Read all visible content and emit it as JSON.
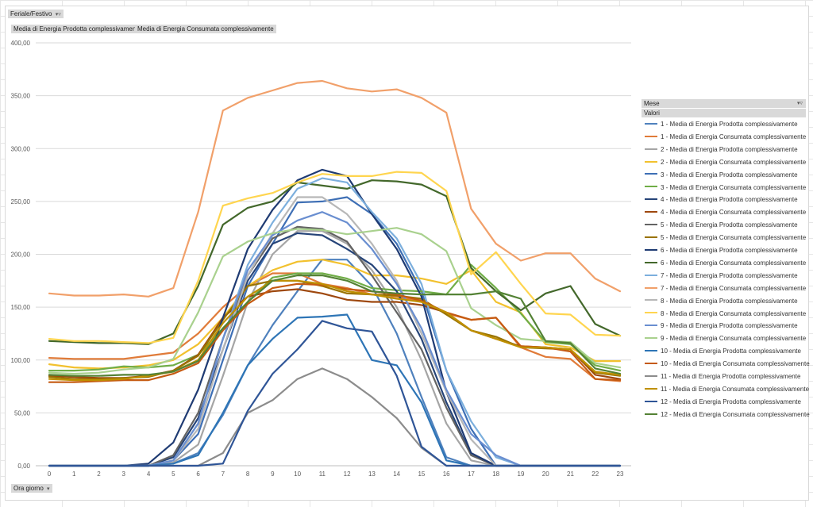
{
  "filter_field": {
    "label": "Feriale/Festivo",
    "icon": "filter-dropdown-icon"
  },
  "value_fields": [
    "Media di Energia Prodotta complessivamente",
    "Media di Energia Consumata complessivamente"
  ],
  "axis_field": {
    "label": "Ora giorno",
    "icon": "dropdown-arrow-icon"
  },
  "legend": {
    "header": "Mese",
    "subheader": "Valori",
    "icon": "filter-dropdown-icon"
  },
  "chart_data": {
    "type": "line",
    "x": [
      0,
      1,
      2,
      3,
      4,
      5,
      6,
      7,
      8,
      9,
      10,
      11,
      12,
      13,
      14,
      15,
      16,
      17,
      18,
      19,
      20,
      21,
      22,
      23
    ],
    "categories": [
      "0",
      "1",
      "2",
      "3",
      "4",
      "5",
      "6",
      "7",
      "8",
      "9",
      "10",
      "11",
      "12",
      "13",
      "14",
      "15",
      "16",
      "17",
      "18",
      "19",
      "20",
      "21",
      "22",
      "23"
    ],
    "ylim": [
      0,
      400
    ],
    "yticks": [
      "0,00",
      "50,00",
      "100,00",
      "150,00",
      "200,00",
      "250,00",
      "300,00",
      "350,00",
      "400,00"
    ],
    "grid": true,
    "legend_position": "right",
    "series": [
      {
        "name": "1 - Media di Energia Prodotta complessivamente",
        "color": "#4F81BD",
        "values": [
          0,
          0,
          0,
          0,
          0,
          2,
          12,
          48,
          95,
          133,
          165,
          195,
          195,
          170,
          125,
          65,
          8,
          0,
          0,
          0,
          0,
          0,
          0,
          0
        ]
      },
      {
        "name": "1 - Media di Energia Consumata complessivamente",
        "color": "#E07B39",
        "values": [
          102,
          101,
          101,
          101,
          104,
          107,
          125,
          150,
          170,
          182,
          182,
          172,
          168,
          162,
          160,
          155,
          144,
          138,
          140,
          112,
          103,
          101,
          82,
          80
        ]
      },
      {
        "name": "2 - Media di Energia Prodotta complessivamente",
        "color": "#A5A5A5",
        "values": [
          0,
          0,
          0,
          0,
          0,
          3,
          20,
          85,
          155,
          200,
          222,
          222,
          210,
          185,
          150,
          100,
          40,
          5,
          0,
          0,
          0,
          0,
          0,
          0
        ]
      },
      {
        "name": "2 - Media di Energia Consumata complessivamente",
        "color": "#F2C12E",
        "values": [
          96,
          93,
          92,
          93,
          95,
          100,
          115,
          140,
          170,
          185,
          193,
          195,
          190,
          180,
          180,
          177,
          172,
          185,
          155,
          145,
          115,
          112,
          99,
          99
        ]
      },
      {
        "name": "3 - Media di Energia Prodotta complessivamente",
        "color": "#3E6FB5",
        "values": [
          0,
          0,
          0,
          0,
          0,
          5,
          30,
          100,
          170,
          210,
          249,
          250,
          254,
          238,
          210,
          165,
          90,
          35,
          0,
          0,
          0,
          0,
          0,
          0
        ]
      },
      {
        "name": "3 - Media di Energia Consumata complessivamente",
        "color": "#70AD47",
        "values": [
          90,
          90,
          91,
          94,
          93,
          95,
          105,
          130,
          155,
          178,
          182,
          182,
          177,
          168,
          166,
          165,
          162,
          190,
          168,
          144,
          117,
          115,
          95,
          90
        ]
      },
      {
        "name": "4 - Media di Energia Prodotta complessivamente",
        "color": "#264478",
        "values": [
          0,
          0,
          0,
          0,
          0,
          8,
          45,
          110,
          175,
          210,
          220,
          218,
          205,
          190,
          165,
          120,
          60,
          10,
          0,
          0,
          0,
          0,
          0,
          0
        ]
      },
      {
        "name": "4 - Media di Energia Consumata complessivamente",
        "color": "#9E480E",
        "values": [
          85,
          84,
          83,
          83,
          85,
          90,
          105,
          140,
          160,
          165,
          167,
          163,
          157,
          155,
          155,
          152,
          145,
          128,
          120,
          113,
          112,
          110,
          86,
          82
        ]
      },
      {
        "name": "5 - Media di Energia Prodotta complessivamente",
        "color": "#636363",
        "values": [
          0,
          0,
          0,
          0,
          0,
          10,
          50,
          120,
          180,
          215,
          226,
          224,
          212,
          180,
          145,
          110,
          55,
          10,
          0,
          0,
          0,
          0,
          0,
          0
        ]
      },
      {
        "name": "5 - Media di Energia Consumata complessivamente",
        "color": "#997300",
        "values": [
          84,
          82,
          82,
          83,
          84,
          90,
          104,
          138,
          170,
          175,
          175,
          170,
          163,
          162,
          161,
          158,
          143,
          128,
          122,
          112,
          111,
          110,
          88,
          85
        ]
      },
      {
        "name": "6 - Media di Energia Prodotta complessivamente",
        "color": "#1F3B73",
        "values": [
          0,
          0,
          0,
          0,
          2,
          22,
          72,
          140,
          205,
          242,
          270,
          280,
          274,
          238,
          205,
          160,
          70,
          12,
          0,
          0,
          0,
          0,
          0,
          0
        ]
      },
      {
        "name": "6 - Media di Energia Consumata complessivamente",
        "color": "#43682B",
        "values": [
          118,
          117,
          116,
          116,
          115,
          125,
          170,
          228,
          244,
          250,
          268,
          265,
          262,
          270,
          269,
          266,
          255,
          187,
          165,
          147,
          163,
          170,
          134,
          123
        ]
      },
      {
        "name": "7 - Media di Energia Prodotta complessivamente",
        "color": "#7CAFDD",
        "values": [
          0,
          0,
          0,
          0,
          0,
          5,
          40,
          120,
          190,
          230,
          262,
          272,
          268,
          240,
          215,
          172,
          90,
          42,
          8,
          0,
          0,
          0,
          0,
          0
        ]
      },
      {
        "name": "7 - Media di Energia Consumata complessivamente",
        "color": "#F1A06A",
        "values": [
          163,
          161,
          161,
          162,
          160,
          168,
          240,
          336,
          348,
          355,
          362,
          364,
          357,
          354,
          356,
          348,
          334,
          243,
          210,
          194,
          201,
          201,
          177,
          165
        ]
      },
      {
        "name": "8 - Media di Energia Prodotta complessivamente",
        "color": "#B7B7B7",
        "values": [
          0,
          0,
          0,
          0,
          0,
          5,
          35,
          110,
          180,
          220,
          254,
          254,
          238,
          210,
          175,
          125,
          70,
          25,
          0,
          0,
          0,
          0,
          0,
          0
        ]
      },
      {
        "name": "8 - Media di Energia Consumata complessivamente",
        "color": "#FFD54F",
        "values": [
          120,
          118,
          118,
          117,
          116,
          121,
          175,
          246,
          253,
          258,
          268,
          276,
          274,
          274,
          278,
          277,
          260,
          181,
          202,
          172,
          144,
          143,
          124,
          123
        ]
      },
      {
        "name": "9 - Media di Energia Prodotta complessivamente",
        "color": "#698ED0",
        "values": [
          0,
          0,
          0,
          0,
          0,
          5,
          40,
          120,
          185,
          218,
          232,
          240,
          230,
          205,
          172,
          130,
          72,
          30,
          10,
          0,
          0,
          0,
          0,
          0
        ]
      },
      {
        "name": "9 - Media di Energia Consumata complessivamente",
        "color": "#A9D18E",
        "values": [
          88,
          87,
          88,
          91,
          93,
          101,
          145,
          198,
          212,
          220,
          224,
          223,
          219,
          222,
          225,
          219,
          203,
          149,
          133,
          120,
          118,
          117,
          97,
          93
        ]
      },
      {
        "name": "10 - Media di Energia Prodotta complessivamente",
        "color": "#2E75B6",
        "values": [
          0,
          0,
          0,
          0,
          0,
          2,
          10,
          50,
          95,
          120,
          140,
          141,
          143,
          100,
          95,
          60,
          5,
          0,
          0,
          0,
          0,
          0,
          0,
          0
        ]
      },
      {
        "name": "10 - Media di Energia Consumata complessivamente",
        "color": "#C55A11",
        "values": [
          79,
          79,
          80,
          81,
          81,
          87,
          97,
          128,
          153,
          168,
          172,
          171,
          167,
          165,
          162,
          156,
          145,
          138,
          140,
          113,
          112,
          108,
          82,
          81
        ]
      },
      {
        "name": "11 - Media di Energia Prodotta complessivamente",
        "color": "#8C8C8C",
        "values": [
          0,
          0,
          0,
          0,
          0,
          0,
          0,
          12,
          50,
          62,
          82,
          92,
          82,
          65,
          45,
          17,
          0,
          0,
          0,
          0,
          0,
          0,
          0,
          0
        ]
      },
      {
        "name": "11 - Media di Energia Consumata complessivamente",
        "color": "#BF9000",
        "values": [
          82,
          81,
          81,
          82,
          85,
          89,
          100,
          135,
          160,
          175,
          175,
          172,
          165,
          162,
          158,
          155,
          145,
          128,
          120,
          112,
          112,
          110,
          89,
          86
        ]
      },
      {
        "name": "12 - Media di Energia Prodotta complessivamente",
        "color": "#2F5597",
        "values": [
          0,
          0,
          0,
          0,
          0,
          0,
          0,
          2,
          52,
          87,
          110,
          137,
          130,
          127,
          85,
          18,
          0,
          0,
          0,
          0,
          0,
          0,
          0,
          0
        ]
      },
      {
        "name": "12 - Media di Energia Consumata complessivamente",
        "color": "#548235",
        "values": [
          86,
          85,
          85,
          86,
          86,
          89,
          99,
          130,
          155,
          175,
          180,
          180,
          175,
          165,
          163,
          162,
          162,
          162,
          165,
          158,
          118,
          116,
          92,
          87
        ]
      }
    ]
  }
}
